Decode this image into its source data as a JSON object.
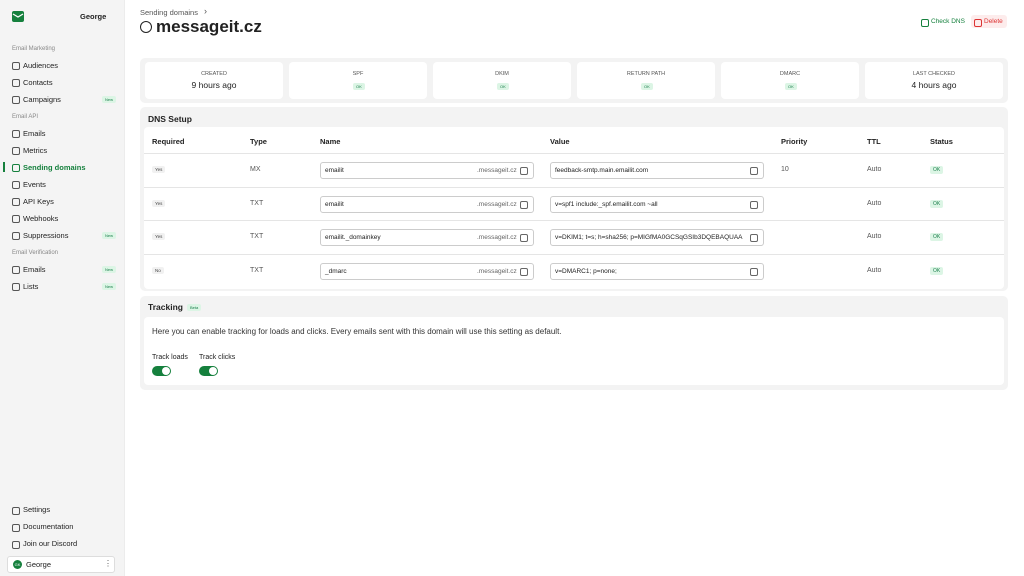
{
  "sidebar": {
    "workspace": "George",
    "sections": [
      {
        "title": "Email Marketing",
        "items": [
          {
            "label": "Audiences"
          },
          {
            "label": "Contacts"
          },
          {
            "label": "Campaigns",
            "badge": "New"
          }
        ]
      },
      {
        "title": "Email API",
        "items": [
          {
            "label": "Emails"
          },
          {
            "label": "Metrics"
          },
          {
            "label": "Sending domains",
            "active": true
          },
          {
            "label": "Events"
          },
          {
            "label": "API Keys"
          },
          {
            "label": "Webhooks"
          },
          {
            "label": "Suppressions",
            "badge": "New"
          }
        ]
      },
      {
        "title": "Email Verification",
        "items": [
          {
            "label": "Emails",
            "badge": "New"
          },
          {
            "label": "Lists",
            "badge": "New"
          }
        ]
      }
    ],
    "footer": [
      "Settings",
      "Documentation",
      "Join our Discord"
    ],
    "user": {
      "initials": "GK",
      "name": "George"
    }
  },
  "breadcrumb": "Sending domains",
  "title": "messageit.cz",
  "actions": {
    "check": "Check DNS",
    "delete": "Delete"
  },
  "stats": [
    {
      "label": "CREATED",
      "value": "9 hours ago"
    },
    {
      "label": "SPF",
      "badge": "OK"
    },
    {
      "label": "DKIM",
      "badge": "OK"
    },
    {
      "label": "RETURN PATH",
      "badge": "OK"
    },
    {
      "label": "DMARC",
      "badge": "OK"
    },
    {
      "label": "LAST CHECKED",
      "value": "4 hours ago"
    }
  ],
  "dns": {
    "title": "DNS Setup",
    "columns": [
      "Required",
      "Type",
      "Name",
      "Value",
      "Priority",
      "TTL",
      "Status"
    ],
    "rows": [
      {
        "required": "Yes",
        "type": "MX",
        "name": "emailit",
        "suffix": ".messageit.cz",
        "value": "feedback-smtp.main.emailit.com",
        "priority": "10",
        "ttl": "Auto",
        "status": "OK"
      },
      {
        "required": "Yes",
        "type": "TXT",
        "name": "emailit",
        "suffix": ".messageit.cz",
        "value": "v=spf1 include:_spf.emailit.com ~all",
        "ttl": "Auto",
        "status": "OK"
      },
      {
        "required": "Yes",
        "type": "TXT",
        "name": "emailit._domainkey",
        "suffix": ".messageit.cz",
        "value": "v=DKIM1; t=s; h=sha256; p=MIGfMA0GCSqGSIb3DQEBAQUAA",
        "ttl": "Auto",
        "status": "OK"
      },
      {
        "required": "No",
        "type": "TXT",
        "name": "_dmarc",
        "suffix": ".messageit.cz",
        "value": "v=DMARC1; p=none;",
        "ttl": "Auto",
        "status": "OK"
      }
    ]
  },
  "tracking": {
    "title": "Tracking",
    "badge": "Beta",
    "description": "Here you can enable tracking for loads and clicks. Every emails sent with this domain will use this setting as default.",
    "toggles": [
      "Track loads",
      "Track clicks"
    ]
  }
}
